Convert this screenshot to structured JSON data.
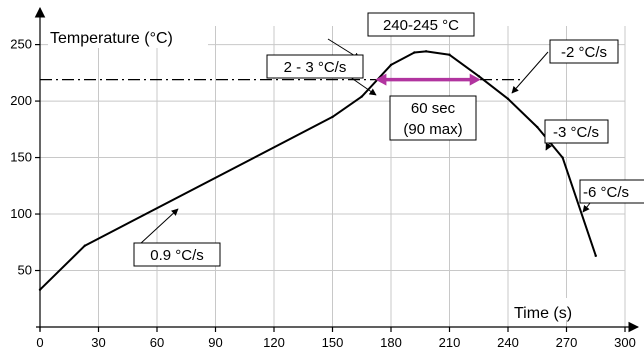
{
  "chart_data": {
    "type": "line",
    "title": "",
    "xlabel": "Time (s)",
    "ylabel": "Temperature (°C)",
    "xlim": [
      0,
      300
    ],
    "ylim": [
      0,
      270
    ],
    "xticks": [
      "0",
      "30",
      "60",
      "90",
      "120",
      "150",
      "180",
      "210",
      "240",
      "270",
      "300"
    ],
    "yticks": [
      "50",
      "100",
      "150",
      "200",
      "250"
    ],
    "grid": true,
    "series": [
      {
        "x": [
          0,
          23,
          150,
          165,
          180,
          192,
          198,
          210,
          225,
          240,
          255,
          268,
          285
        ],
        "y": [
          33,
          72,
          186,
          204,
          232,
          243,
          244,
          241,
          222,
          202,
          177,
          150,
          63
        ]
      }
    ],
    "reference_line": {
      "y": 219
    },
    "time_above_line": {
      "x_start": 172,
      "x_end": 226,
      "color": "#b1349f"
    },
    "annotations": [
      {
        "text": "240-245 °C"
      },
      {
        "text": "2 - 3 °C/s"
      },
      {
        "text": "-2 °C/s"
      },
      {
        "text": "-3 °C/s"
      },
      {
        "text": "-6 °C/s"
      },
      {
        "text": "0.9 °C/s"
      },
      {
        "text": "60 sec"
      },
      {
        "text": "(90 max)"
      }
    ]
  }
}
